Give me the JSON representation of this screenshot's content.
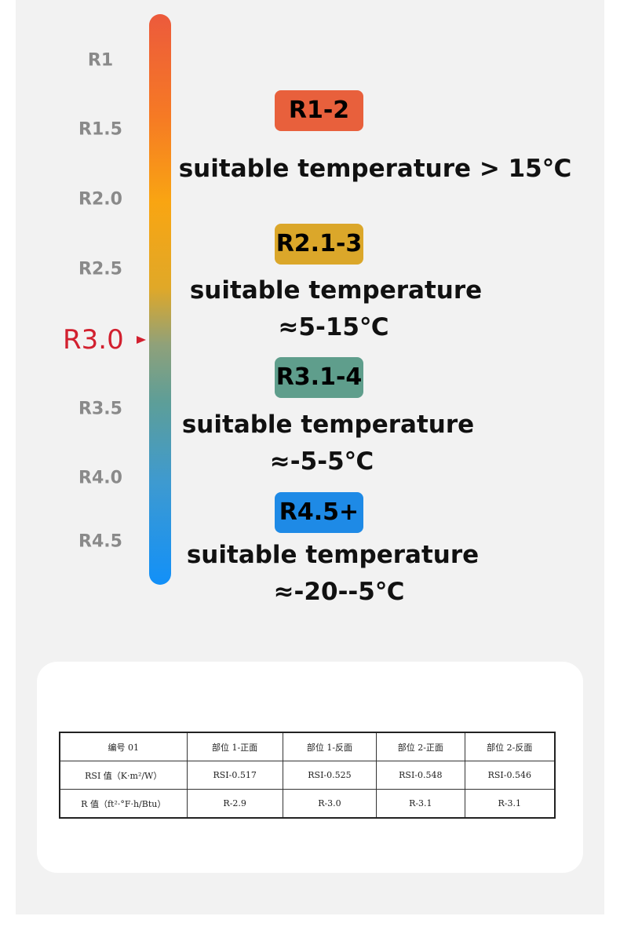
{
  "scale": {
    "labels": [
      "R1",
      "R1.5",
      "R2.0",
      "R2.5",
      "R3.5",
      "R4.0",
      "R4.5"
    ],
    "marker": "R3.0"
  },
  "ranges": [
    {
      "badge": "R1-2",
      "lines": [
        "suitable temperature > 15℃"
      ]
    },
    {
      "badge": "R2.1-3",
      "lines": [
        "suitable temperature",
        "≈5-15℃"
      ]
    },
    {
      "badge": "R3.1-4",
      "lines": [
        "suitable temperature",
        "≈-5-5℃"
      ]
    },
    {
      "badge": "R4.5+",
      "lines": [
        "suitable temperature",
        "≈-20--5℃"
      ]
    }
  ],
  "table": {
    "header": [
      "编号 01",
      "部位 1-正面",
      "部位 1-反面",
      "部位 2-正面",
      "部位 2-反面"
    ],
    "rows": [
      [
        "RSI 值（K·m²/W）",
        "RSI-0.517",
        "RSI-0.525",
        "RSI-0.548",
        "RSI-0.546"
      ],
      [
        "R 值（ft²·°F·h/Btu）",
        "R-2.9",
        "R-3.0",
        "R-3.1",
        "R-3.1"
      ]
    ]
  }
}
